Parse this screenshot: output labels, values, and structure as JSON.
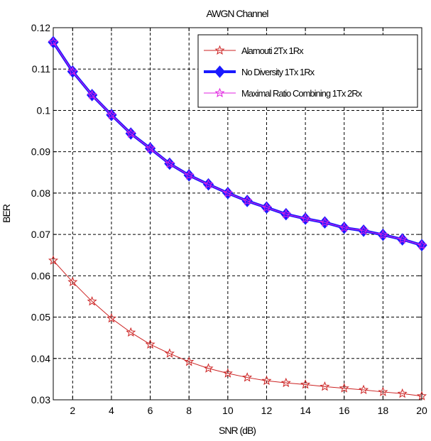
{
  "chart_data": {
    "type": "line",
    "title": "AWGN Channel",
    "xlabel": "SNR (dB)",
    "ylabel": "BER",
    "xlim": [
      1,
      20
    ],
    "ylim": [
      0.03,
      0.12
    ],
    "xticks": [
      2,
      4,
      6,
      8,
      10,
      12,
      14,
      16,
      18,
      20
    ],
    "yticks": [
      0.03,
      0.04,
      0.05,
      0.06,
      0.07,
      0.08,
      0.09,
      0.1,
      0.11,
      0.12
    ],
    "ytick_labels": [
      "0.03",
      "0.04",
      "0.05",
      "0.06",
      "0.07",
      "0.08",
      "0.09",
      "0.1",
      "0.11",
      "0.12"
    ],
    "grid": true,
    "legend_position": "top-right",
    "x": [
      1,
      2,
      3,
      4,
      5,
      6,
      7,
      8,
      9,
      10,
      11,
      12,
      13,
      14,
      15,
      16,
      17,
      18,
      19,
      20
    ],
    "series": [
      {
        "name": "Alamouti 2Tx 1Rx",
        "color": "#cc2222",
        "marker": "star",
        "line_width": 1,
        "values": [
          0.0637,
          0.0585,
          0.0538,
          0.0497,
          0.0463,
          0.0434,
          0.0412,
          0.0392,
          0.0376,
          0.0364,
          0.0354,
          0.0346,
          0.0341,
          0.0337,
          0.0332,
          0.0328,
          0.0324,
          0.0319,
          0.0315,
          0.0309
        ]
      },
      {
        "name": "No Diversity 1Tx 1Rx",
        "color": "#1a1aff",
        "marker": "diamond",
        "line_width": 4,
        "values": [
          0.1165,
          0.1094,
          0.1037,
          0.0989,
          0.0944,
          0.0908,
          0.0871,
          0.0843,
          0.0821,
          0.08,
          0.0781,
          0.0765,
          0.0749,
          0.0738,
          0.0729,
          0.0716,
          0.0709,
          0.0699,
          0.0688,
          0.0674
        ]
      },
      {
        "name": "Maximal Ratio Combining 1Tx 2Rx",
        "color": "#e020e0",
        "marker": "star",
        "line_width": 1,
        "values": [
          0.1165,
          0.1094,
          0.1037,
          0.0989,
          0.0944,
          0.0908,
          0.0871,
          0.0843,
          0.0821,
          0.08,
          0.0781,
          0.0765,
          0.0749,
          0.0738,
          0.0729,
          0.0716,
          0.0709,
          0.0699,
          0.0688,
          0.0674
        ]
      }
    ]
  }
}
